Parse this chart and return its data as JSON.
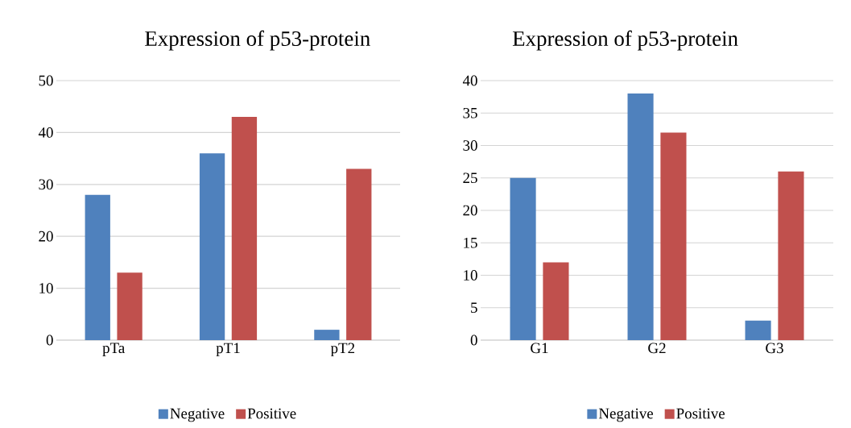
{
  "chart_data": [
    {
      "type": "bar",
      "title": "Expression of p53-protein",
      "categories": [
        "pTa",
        "pT1",
        "pT2"
      ],
      "series": [
        {
          "name": "Negative",
          "color": "#4f81bd",
          "values": [
            28,
            36,
            2
          ]
        },
        {
          "name": "Positive",
          "color": "#c0504d",
          "values": [
            13,
            43,
            33
          ]
        }
      ],
      "ylim": [
        0,
        50
      ],
      "yticks": [
        0,
        10,
        20,
        30,
        40,
        50
      ],
      "grid": "y",
      "legend": "bottom"
    },
    {
      "type": "bar",
      "title": "Expression of p53-protein",
      "categories": [
        "G1",
        "G2",
        "G3"
      ],
      "series": [
        {
          "name": "Negative",
          "color": "#4f81bd",
          "values": [
            25,
            38,
            3
          ]
        },
        {
          "name": "Positive",
          "color": "#c0504d",
          "values": [
            12,
            32,
            26
          ]
        }
      ],
      "ylim": [
        0,
        40
      ],
      "yticks": [
        0,
        5,
        10,
        15,
        20,
        25,
        30,
        35,
        40
      ],
      "grid": "y",
      "legend": "bottom"
    }
  ]
}
